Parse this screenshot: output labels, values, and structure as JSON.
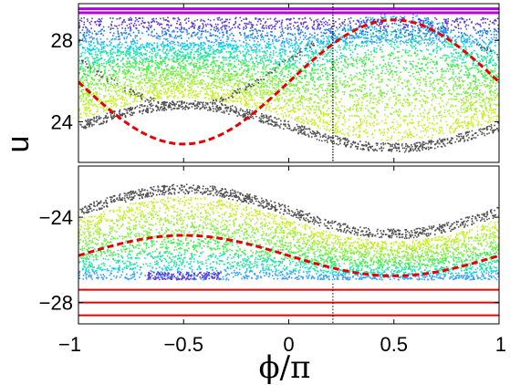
{
  "chart_data": {
    "type": "scatter",
    "xlabel": "ϕ/π",
    "ylabel": "u",
    "xlim": [
      -1,
      1
    ],
    "x_ticks": [
      "−1",
      "−0.5",
      "0",
      "0.5",
      "1"
    ],
    "x_tick_values": [
      -1,
      -0.5,
      0,
      0.5,
      1
    ],
    "grid": false,
    "legend": "none",
    "colors": {
      "chaotic_sea": [
        "#00d2e6",
        "#1ee6a0",
        "#3cf04b",
        "#78f03c",
        "#a5f032",
        "#c8f028"
      ],
      "near_edge": [
        "#30a0ff",
        "#1e78e6",
        "#5a3cd2"
      ],
      "top_band": "#b400e6",
      "separatrix": "#505050",
      "dashed_curve": "#e60000",
      "solid_lines_bottom": "#e60000",
      "vertical_marker": "#000000"
    },
    "panels": [
      {
        "name": "upper",
        "ylim": [
          22,
          29.8
        ],
        "y_ticks": [
          "24",
          "28"
        ],
        "y_tick_values": [
          24,
          28
        ],
        "top_lines_u": [
          29.55,
          29.35
        ],
        "chaotic_band_u": [
          27.9,
          29.15
        ],
        "upper_boundary": {
          "mean": 27.1,
          "amplitude": 2.3
        },
        "dashed_curve": {
          "mean": 25.95,
          "amplitude": 3.05,
          "phase": "sin(pi*phi)"
        },
        "lower_separatrix": {
          "mean": 23.8,
          "amplitude": 1.05,
          "phase": "-sin(pi*phi)"
        },
        "vertical_marker_phi": 0.21
      },
      {
        "name": "lower",
        "ylim": [
          -29.0,
          -21.6
        ],
        "y_ticks": [
          "−24",
          "−28"
        ],
        "y_tick_values": [
          -24,
          -28
        ],
        "chaotic_band_u": [
          -26.9,
          -22.5
        ],
        "upper_separatrix": {
          "mean": -23.7,
          "amplitude": 1.05,
          "phase": "-sin(pi*phi)"
        },
        "dashed_curve": {
          "mean": -25.8,
          "amplitude": 0.95,
          "phase": "-sin(pi*phi)"
        },
        "bottom_lines_u": [
          -27.4,
          -28.0,
          -28.6
        ],
        "vertical_marker_phi": 0.21
      }
    ]
  }
}
